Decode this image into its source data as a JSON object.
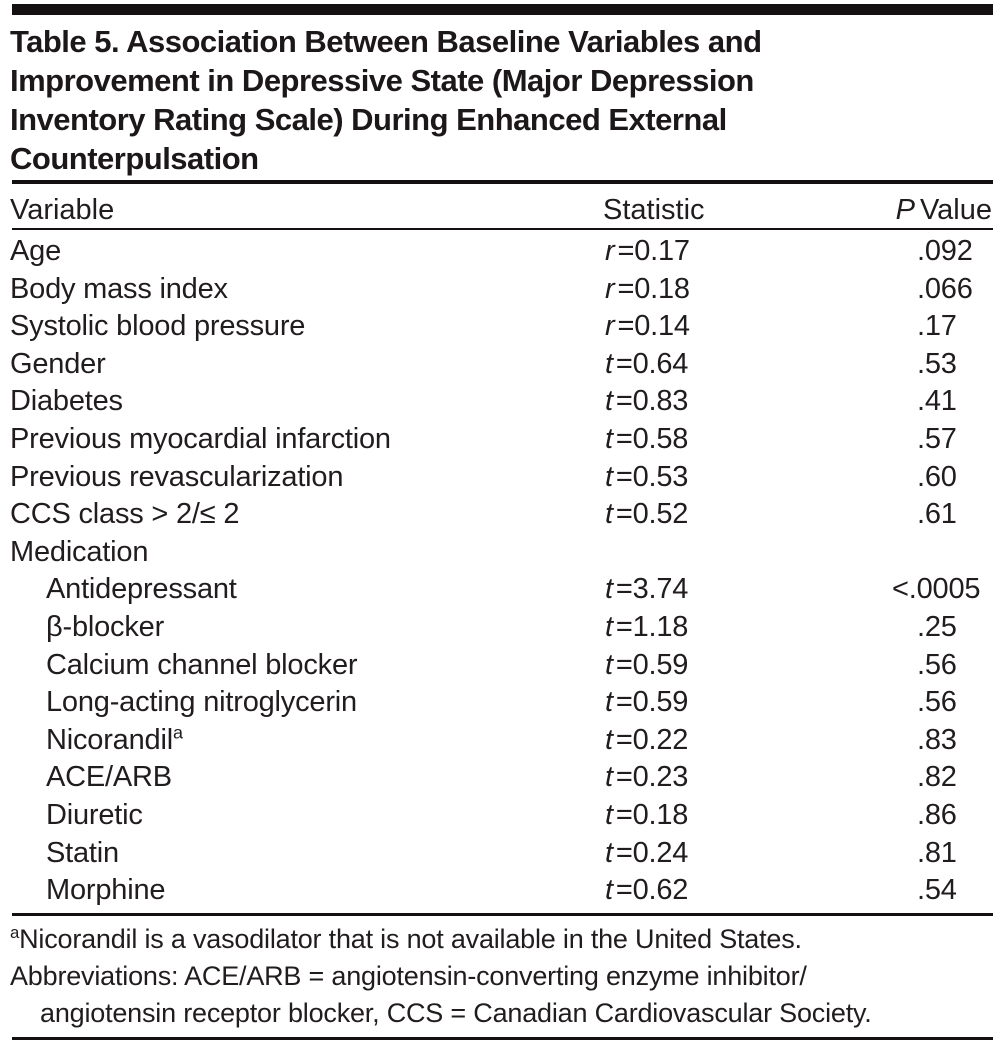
{
  "table": {
    "title_lines": [
      "Table 5. Association Between Baseline Variables and",
      "Improvement in Depressive State (Major Depression",
      "Inventory Rating Scale) During Enhanced External",
      "Counterpulsation"
    ],
    "columns": {
      "variable": "Variable",
      "statistic": "Statistic",
      "p_italic": "P",
      "p_rest": "Value"
    },
    "rows": [
      {
        "label": "Age",
        "sym": "r",
        "val": "=0.17",
        "p": ".092"
      },
      {
        "label": "Body mass index",
        "sym": "r",
        "val": "=0.18",
        "p": ".066"
      },
      {
        "label": "Systolic blood pressure",
        "sym": "r",
        "val": "=0.14",
        "p": ".17"
      },
      {
        "label": "Gender",
        "sym": "t",
        "val": "=0.64",
        "p": ".53"
      },
      {
        "label": "Diabetes",
        "sym": "t",
        "val": "=0.83",
        "p": ".41"
      },
      {
        "label": "Previous myocardial infarction",
        "sym": "t",
        "val": "=0.58",
        "p": ".57"
      },
      {
        "label": "Previous revascularization",
        "sym": "t",
        "val": "=0.53",
        "p": ".60"
      },
      {
        "label": "CCS class > 2/≤ 2",
        "sym": "t",
        "val": "=0.52",
        "p": ".61"
      },
      {
        "label": "Medication"
      },
      {
        "label": "Antidepressant",
        "sym": "t",
        "val": "=3.74",
        "p": "<.0005"
      },
      {
        "label": "β-blocker",
        "sym": "t",
        "val": "=1.18",
        "p": ".25"
      },
      {
        "label": "Calcium channel blocker",
        "sym": "t",
        "val": "=0.59",
        "p": ".56"
      },
      {
        "label": "Long-acting nitroglycerin",
        "sym": "t",
        "val": "=0.59",
        "p": ".56"
      },
      {
        "label": "Nicorandil",
        "sup": "a",
        "sym": "t",
        "val": "=0.22",
        "p": ".83"
      },
      {
        "label": "ACE/ARB",
        "sym": "t",
        "val": "=0.23",
        "p": ".82"
      },
      {
        "label": "Diuretic",
        "sym": "t",
        "val": "=0.18",
        "p": ".86"
      },
      {
        "label": "Statin",
        "sym": "t",
        "val": "=0.24",
        "p": ".81"
      },
      {
        "label": "Morphine",
        "sym": "t",
        "val": "=0.62",
        "p": ".54"
      }
    ],
    "footnotes": {
      "note_a_sup": "a",
      "note_a": "Nicorandil is a vasodilator that is not available in the United States.",
      "abbrev_line1": "Abbreviations: ACE/ARB = angiotensin-converting enzyme inhibitor/",
      "abbrev_line2": "angiotensin receptor blocker, CCS = Canadian Cardiovascular Society."
    },
    "colors": {
      "text": "#211c1d",
      "rule": "#141011",
      "background": "#ffffff"
    }
  }
}
